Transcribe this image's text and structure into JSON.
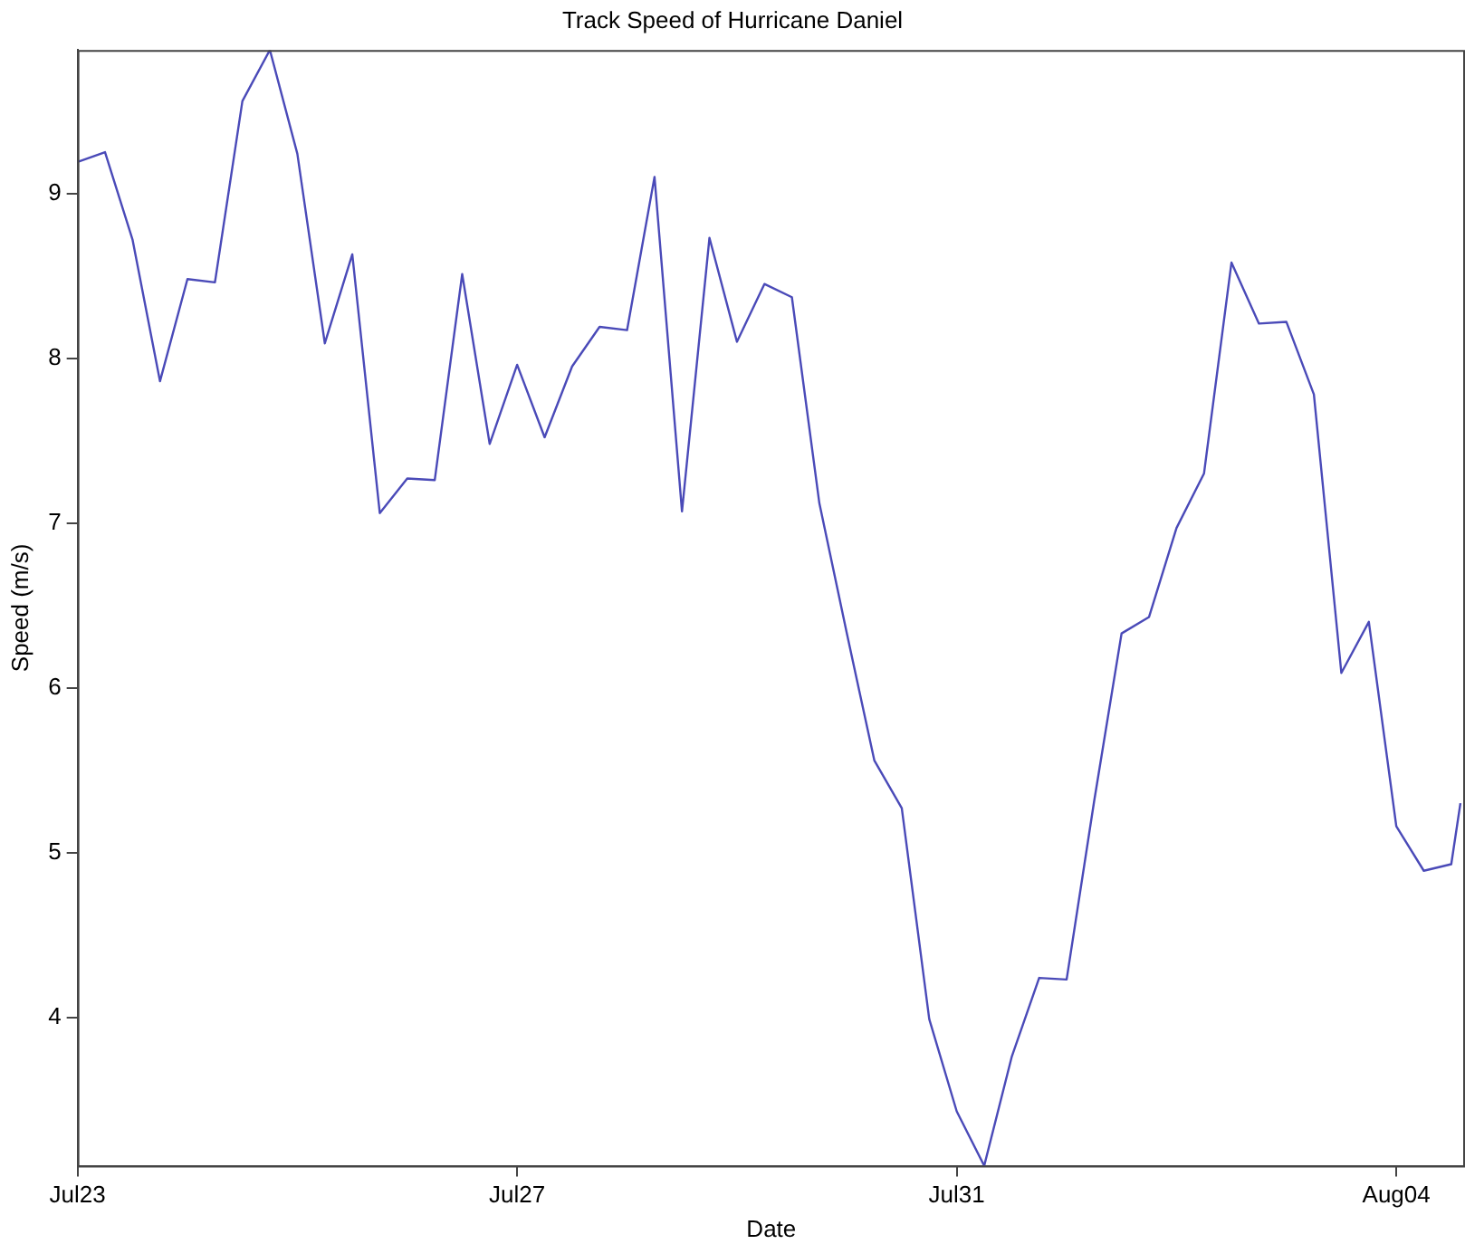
{
  "chart_data": {
    "type": "line",
    "title": "Track Speed of Hurricane Daniel",
    "xlabel": "Date",
    "ylabel": "Speed (m/s)",
    "x": [
      "--07-23T00:00",
      "--07-23T06:00",
      "--07-23T12:00",
      "--07-23T18:00",
      "--07-24T00:00",
      "--07-24T06:00",
      "--07-24T12:00",
      "--07-24T18:00",
      "--07-25T00:00",
      "--07-25T06:00",
      "--07-25T12:00",
      "--07-25T18:00",
      "--07-26T00:00",
      "--07-26T06:00",
      "--07-26T12:00",
      "--07-26T18:00",
      "--07-27T00:00",
      "--07-27T06:00",
      "--07-27T12:00",
      "--07-27T18:00",
      "--07-28T00:00",
      "--07-28T06:00",
      "--07-28T12:00",
      "--07-28T18:00",
      "--07-29T00:00",
      "--07-29T06:00",
      "--07-29T12:00",
      "--07-29T18:00",
      "--07-30T00:00",
      "--07-30T06:00",
      "--07-30T12:00",
      "--07-30T18:00",
      "--07-31T00:00",
      "--07-31T06:00",
      "--07-31T12:00",
      "--07-31T18:00",
      "--08-01T00:00",
      "--08-01T06:00",
      "--08-01T12:00",
      "--08-01T18:00",
      "--08-02T00:00",
      "--08-02T06:00",
      "--08-02T12:00",
      "--08-02T18:00",
      "--08-03T00:00",
      "--08-03T06:00",
      "--08-03T12:00",
      "--08-03T18:00",
      "--08-04T00:00",
      "--08-04T06:00",
      "--08-04T12:00",
      "--08-04T14:00"
    ],
    "series": [
      {
        "color": "#4a4ab8",
        "values": [
          9.19,
          9.25,
          8.72,
          7.86,
          8.48,
          8.46,
          9.56,
          9.87,
          9.24,
          8.09,
          8.63,
          7.06,
          7.27,
          7.26,
          8.51,
          7.48,
          7.96,
          7.52,
          7.95,
          8.19,
          8.17,
          9.1,
          7.07,
          8.73,
          8.1,
          8.45,
          8.37,
          7.12,
          6.33,
          5.56,
          5.27,
          3.99,
          3.43,
          3.1,
          3.76,
          4.24,
          4.23,
          5.31,
          6.33,
          6.43,
          6.97,
          7.3,
          8.58,
          8.21,
          8.22,
          7.78,
          6.09,
          6.4,
          5.16,
          4.89,
          4.93,
          5.3
        ]
      }
    ],
    "xlim": [
      "--07-23T00:00",
      "--08-04T15:00"
    ],
    "xticks": [
      {
        "value": "--07-27",
        "label": "Jul27"
      },
      {
        "value": "--07-23",
        "label": "Jul23"
      },
      {
        "value": "--07-31",
        "label": "Jul31"
      },
      {
        "value": "--08-04",
        "label": "Aug04"
      }
    ],
    "ylim": [
      3.1,
      9.87
    ],
    "yticks": [
      4,
      5,
      6,
      7,
      8,
      9
    ],
    "grid": false,
    "legend": false,
    "marker": "none",
    "line_style": "solid"
  }
}
